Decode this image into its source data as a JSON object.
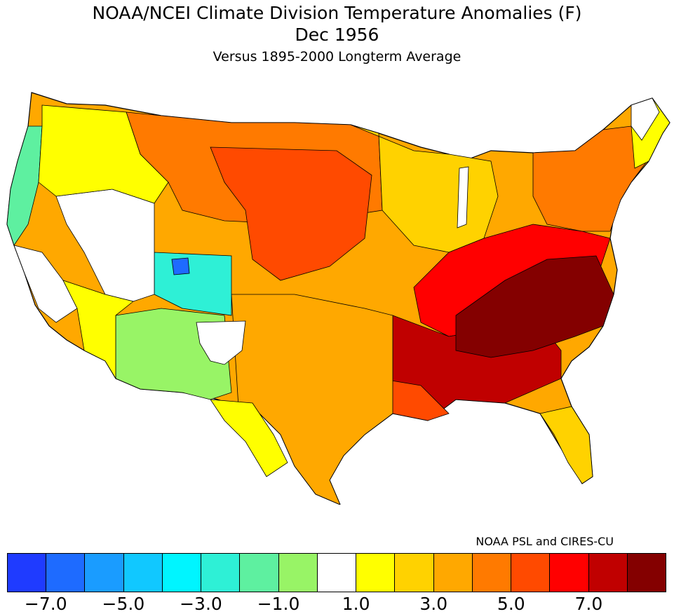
{
  "title": "NOAA/NCEI Climate Division Temperature Anomalies (F)",
  "subtitle": "Dec 1956",
  "subtitle2": "Versus 1895-2000 Longterm Average",
  "credit": "NOAA PSL and CIRES-CU",
  "colorbar": {
    "colors": [
      "#1f3bff",
      "#1e6bff",
      "#1a9cff",
      "#11c8ff",
      "#00f5ff",
      "#2ef0d6",
      "#5ef0a0",
      "#98f466",
      "#ffffff",
      "#ffff00",
      "#ffd200",
      "#ffa800",
      "#ff7a00",
      "#ff4a00",
      "#ff0000",
      "#c00000",
      "#840000"
    ],
    "tick_labels": [
      "−7.0",
      "−5.0",
      "−3.0",
      "−1.0",
      "1.0",
      "3.0",
      "5.0",
      "7.0"
    ],
    "tick_values": [
      -7,
      -5,
      -3,
      -1,
      1,
      3,
      5,
      7
    ]
  },
  "regions": [
    {
      "name": "Pacific Northwest coast",
      "anomaly_class": "-1 to 0 (green)",
      "color": "#5ef0a0"
    },
    {
      "name": "Northern California / Great Basin",
      "anomaly_class": "near normal",
      "color": "#ffffff"
    },
    {
      "name": "Inland Northwest",
      "anomaly_class": "1 to 3",
      "color": "#ffff00"
    },
    {
      "name": "Colorado / Utah Rockies",
      "anomaly_class": "-3 to -1",
      "color": "#2ef0d6"
    },
    {
      "name": "Arizona / New Mexico",
      "anomaly_class": "-1 to 0",
      "color": "#98f466"
    },
    {
      "name": "Northern Plains",
      "anomaly_class": "4 to 6",
      "color": "#ff4a00"
    },
    {
      "name": "Southern Plains",
      "anomaly_class": "2 to 4",
      "color": "#ffa800"
    },
    {
      "name": "Upper Midwest / Great Lakes",
      "anomaly_class": "1 to 3",
      "color": "#ffd200"
    },
    {
      "name": "Ohio Valley / Southeast",
      "anomaly_class": "6 to 8",
      "color": "#c00000"
    },
    {
      "name": "Appalachians / Virginia / Carolinas",
      "anomaly_class": ">8",
      "color": "#840000"
    },
    {
      "name": "Northeast",
      "anomaly_class": "3 to 5",
      "color": "#ff7a00"
    },
    {
      "name": "Florida peninsula",
      "anomaly_class": "1 to 3",
      "color": "#ffd200"
    }
  ]
}
